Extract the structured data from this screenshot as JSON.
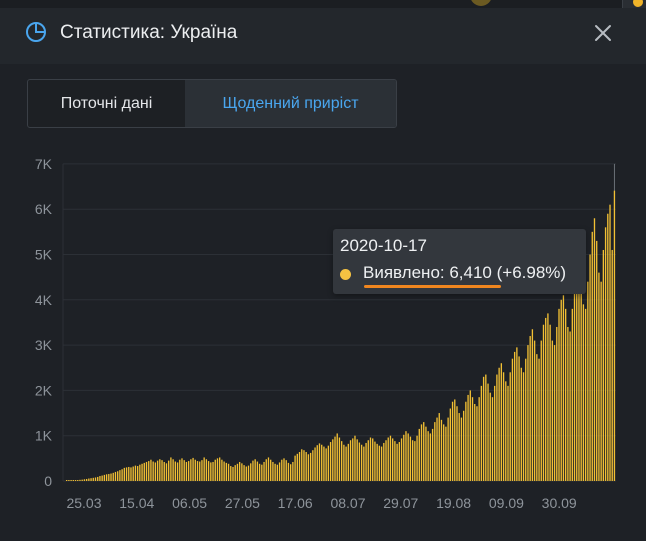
{
  "window": {
    "title": "Статистика: Україна",
    "icon": "pie-chart-icon",
    "close_icon": "close-icon"
  },
  "tabs": [
    {
      "label": "Поточні дані",
      "active": false
    },
    {
      "label": "Щоденний приріст",
      "active": true
    }
  ],
  "tooltip": {
    "date": "2020-10-17",
    "line": "Виявлено: 6,410 (+6.98%)",
    "series_color": "#f5c242",
    "highlight_color": "#f0861f"
  },
  "colors": {
    "bar": "#f2c034",
    "active_tab": "#4aa6ef",
    "background": "#1e2126"
  },
  "chart_data": {
    "type": "bar",
    "series": [
      {
        "name": "Виявлено",
        "color": "#f2c034"
      }
    ],
    "x_start": "2020-03-13",
    "x_ticks": [
      "25.03",
      "15.04",
      "06.05",
      "27.05",
      "17.06",
      "08.07",
      "29.07",
      "19.08",
      "09.09",
      "30.09"
    ],
    "y_ticks": [
      "0",
      "1K",
      "2K",
      "3K",
      "4K",
      "5K",
      "6K",
      "7K"
    ],
    "ylim": [
      0,
      7000
    ],
    "grid": true,
    "values": [
      3,
      5,
      8,
      12,
      15,
      20,
      26,
      30,
      38,
      45,
      55,
      62,
      70,
      78,
      90,
      110,
      120,
      135,
      148,
      155,
      165,
      180,
      200,
      215,
      240,
      260,
      290,
      300,
      310,
      300,
      320,
      340,
      330,
      360,
      380,
      400,
      420,
      440,
      470,
      430,
      410,
      450,
      480,
      460,
      420,
      390,
      450,
      520,
      480,
      430,
      410,
      470,
      500,
      460,
      420,
      440,
      480,
      510,
      470,
      440,
      430,
      460,
      520,
      480,
      440,
      410,
      420,
      470,
      500,
      520,
      470,
      430,
      400,
      380,
      330,
      310,
      350,
      380,
      420,
      390,
      350,
      320,
      340,
      390,
      450,
      480,
      430,
      380,
      360,
      420,
      480,
      520,
      470,
      420,
      380,
      360,
      410,
      470,
      500,
      460,
      400,
      370,
      420,
      560,
      600,
      640,
      700,
      680,
      640,
      590,
      620,
      680,
      740,
      790,
      830,
      800,
      760,
      720,
      780,
      860,
      920,
      980,
      1050,
      960,
      880,
      800,
      760,
      820,
      900,
      940,
      1000,
      920,
      850,
      800,
      760,
      840,
      900,
      960,
      940,
      870,
      820,
      780,
      760,
      840,
      900,
      960,
      1000,
      940,
      880,
      820,
      860,
      940,
      1020,
      1100,
      1050,
      980,
      900,
      880,
      1000,
      1150,
      1250,
      1300,
      1200,
      1100,
      1050,
      1150,
      1300,
      1400,
      1500,
      1350,
      1250,
      1200,
      1400,
      1600,
      1750,
      1800,
      1650,
      1500,
      1400,
      1550,
      1750,
      1900,
      2000,
      1850,
      1700,
      1650,
      1850,
      2100,
      2300,
      2350,
      2150,
      1950,
      1850,
      2100,
      2350,
      2500,
      2600,
      2400,
      2200,
      2100,
      2400,
      2700,
      2850,
      2950,
      2750,
      2500,
      2400,
      2700,
      3000,
      3200,
      3350,
      3100,
      2800,
      2700,
      3100,
      3450,
      3600,
      3700,
      3450,
      3100,
      3000,
      3400,
      3800,
      4000,
      4100,
      3800,
      3400,
      3300,
      3800,
      4300,
      4600,
      4700,
      4300,
      3900,
      3800,
      4400,
      5000,
      5500,
      5800,
      5300,
      4600,
      4400,
      5100,
      5600,
      5900,
      6100,
      5100,
      6410
    ]
  }
}
